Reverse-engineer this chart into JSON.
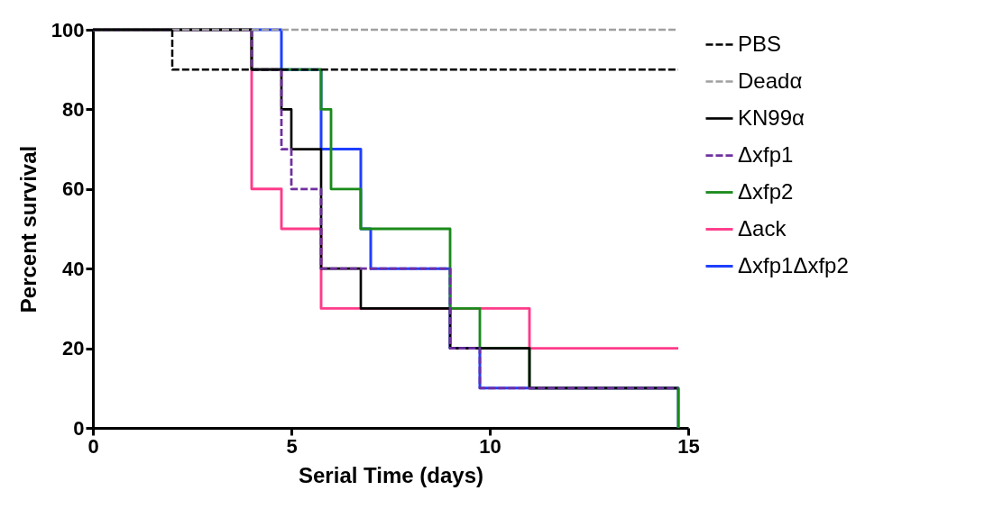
{
  "chart_data": {
    "type": "step",
    "xlabel": "Serial Time (days)",
    "ylabel": "Percent survival",
    "xlim": [
      0,
      15
    ],
    "xticks": [
      0,
      5,
      10,
      15
    ],
    "ylim": [
      0,
      100
    ],
    "yticks": [
      0,
      20,
      40,
      60,
      80,
      100
    ],
    "grid": false,
    "legend": "right",
    "marker": "none",
    "series": [
      {
        "name": "PBS",
        "color": "#000000",
        "line_style": "dashed",
        "x": [
          0,
          2,
          14.75
        ],
        "values": [
          100,
          90,
          90
        ]
      },
      {
        "name": "Deadα",
        "color": "#a0a0a0",
        "line_style": "dashed",
        "x": [
          0,
          14.75
        ],
        "values": [
          100,
          100
        ]
      },
      {
        "name": "KN99α",
        "color": "#000000",
        "line_style": "solid",
        "x": [
          0,
          4,
          4.75,
          5,
          5.75,
          6.75,
          9,
          11,
          14.75
        ],
        "values": [
          100,
          90,
          80,
          70,
          40,
          30,
          20,
          10,
          10
        ]
      },
      {
        "name": "Δxfp1",
        "color": "#7030a0",
        "line_style": "dashed",
        "x": [
          0,
          4,
          4.75,
          5,
          5.75,
          9,
          9.75,
          14.75
        ],
        "values": [
          100,
          90,
          70,
          60,
          40,
          20,
          10,
          10
        ]
      },
      {
        "name": "Δxfp2",
        "color": "#1a8a1a",
        "line_style": "solid",
        "x": [
          0,
          4,
          5.75,
          6,
          6.75,
          9,
          9.75,
          11,
          14.75
        ],
        "values": [
          100,
          90,
          80,
          60,
          50,
          30,
          20,
          10,
          0
        ]
      },
      {
        "name": "Δack",
        "color": "#ff3b8a",
        "line_style": "solid",
        "x": [
          0,
          4,
          4.75,
          5.75,
          11,
          14.75
        ],
        "values": [
          100,
          60,
          50,
          30,
          20,
          20
        ]
      },
      {
        "name": "Δxfp1Δxfp2",
        "color": "#1f3fff",
        "line_style": "solid",
        "x": [
          0,
          4.75,
          5.75,
          6.75,
          7,
          9,
          9.75,
          14.75
        ],
        "values": [
          100,
          90,
          70,
          50,
          40,
          20,
          10,
          0
        ]
      }
    ]
  }
}
